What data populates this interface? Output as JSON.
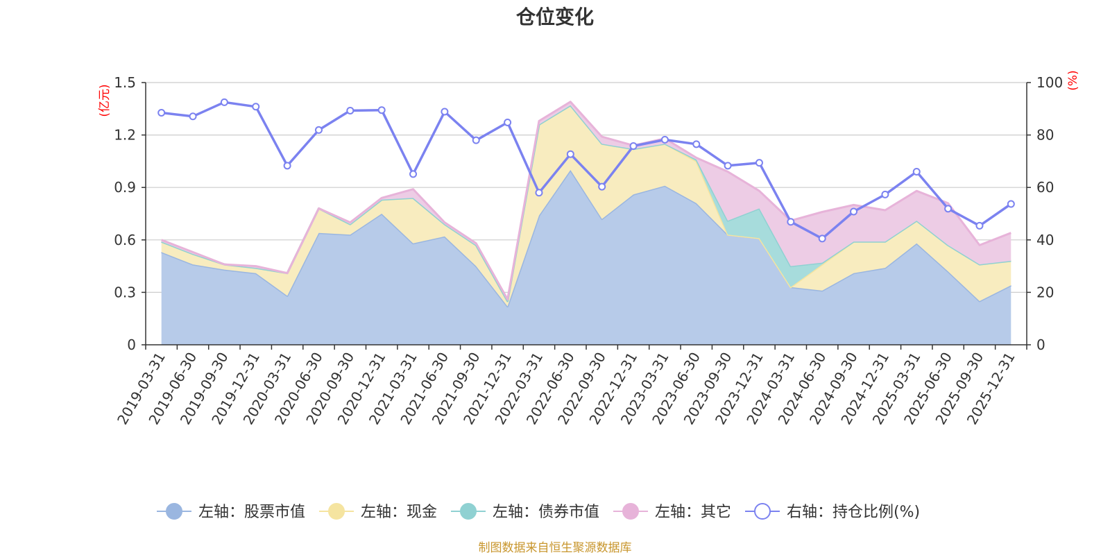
{
  "chart_data": {
    "type": "area",
    "title": "仓位变化",
    "left_axis_unit": "(亿元)",
    "right_axis_unit": "(%)",
    "source_note": "制图数据来自恒生聚源数据库",
    "categories": [
      "2019-03-31",
      "2019-06-30",
      "2019-09-30",
      "2019-12-31",
      "2020-03-31",
      "2020-06-30",
      "2020-09-30",
      "2020-12-31",
      "2021-03-31",
      "2021-06-30",
      "2021-09-30",
      "2021-12-31",
      "2022-03-31",
      "2022-06-30",
      "2022-09-30",
      "2022-12-31",
      "2023-03-31",
      "2023-06-30",
      "2023-09-30",
      "2023-12-31",
      "2024-03-31",
      "2024-06-30",
      "2024-09-30",
      "2024-12-31",
      "2025-03-31",
      "2025-06-30",
      "2025-09-30",
      "2025-12-31"
    ],
    "y_left": {
      "min": 0,
      "max": 1.5,
      "ticks": [
        "0",
        "0.3",
        "0.6",
        "0.9",
        "1.2",
        "1.5"
      ]
    },
    "y_right": {
      "min": 0,
      "max": 100,
      "ticks": [
        "0",
        "20",
        "40",
        "60",
        "80",
        "100"
      ]
    },
    "grid": true,
    "legend_position": "bottom",
    "stacked_series": [
      {
        "name": "左轴：股票市值",
        "color": "#9ab6e0",
        "fill": "#b7cbe9",
        "values": [
          0.53,
          0.46,
          0.43,
          0.41,
          0.28,
          0.64,
          0.63,
          0.75,
          0.58,
          0.62,
          0.45,
          0.22,
          0.74,
          1.0,
          0.72,
          0.86,
          0.91,
          0.81,
          0.63,
          0.61,
          0.33,
          0.31,
          0.41,
          0.44,
          0.58,
          0.42,
          0.25,
          0.34
        ]
      },
      {
        "name": "左轴：现金",
        "color": "#f5e4a0",
        "fill": "#f8ecbf",
        "values": [
          0.06,
          0.06,
          0.03,
          0.03,
          0.13,
          0.14,
          0.06,
          0.08,
          0.26,
          0.07,
          0.12,
          0.03,
          0.52,
          0.37,
          0.43,
          0.26,
          0.24,
          0.24,
          0.0,
          0.0,
          0.0,
          0.15,
          0.18,
          0.15,
          0.13,
          0.15,
          0.21,
          0.14
        ]
      },
      {
        "name": "左轴：债券市值",
        "color": "#8fd1d2",
        "fill": "#a7dcdc",
        "values": [
          0,
          0,
          0,
          0,
          0,
          0,
          0,
          0,
          0,
          0,
          0,
          0,
          0,
          0,
          0,
          0,
          0,
          0.01,
          0.08,
          0.17,
          0.12,
          0.01,
          0,
          0,
          0,
          0,
          0,
          0
        ]
      },
      {
        "name": "左轴：其它",
        "color": "#e7b3d9",
        "fill": "#edcce5",
        "values": [
          0.01,
          0.01,
          0,
          0.01,
          0,
          0,
          0.01,
          0.01,
          0.05,
          0.01,
          0.01,
          0.01,
          0.02,
          0.02,
          0.04,
          0.02,
          0.03,
          0.01,
          0.28,
          0.1,
          0.26,
          0.29,
          0.21,
          0.18,
          0.17,
          0.24,
          0.11,
          0.16
        ]
      }
    ],
    "line_series": {
      "name": "右轴：持仓比例(%)",
      "color": "#7b82f0",
      "values": [
        88.5,
        87.1,
        92.5,
        90.8,
        68.3,
        81.9,
        89.3,
        89.5,
        65.1,
        88.9,
        78.0,
        84.8,
        58.0,
        72.7,
        60.3,
        75.8,
        78.2,
        76.5,
        68.3,
        69.4,
        46.9,
        40.5,
        50.8,
        57.3,
        66.0,
        51.9,
        45.4,
        53.7
      ]
    }
  }
}
